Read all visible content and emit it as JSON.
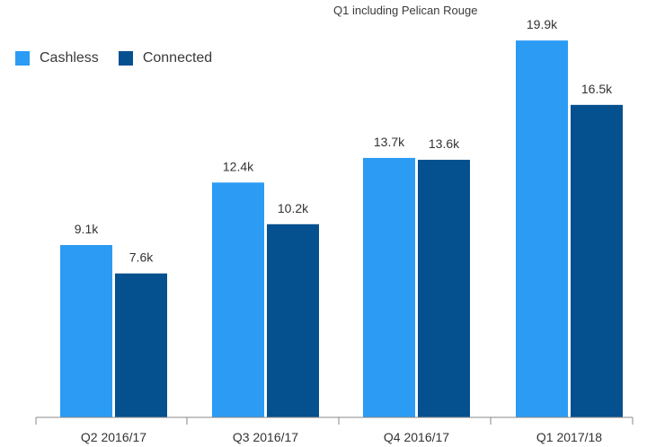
{
  "colors": {
    "cashless": "#2b9bf4",
    "connected": "#05508f",
    "axis": "#888888"
  },
  "chart_data": {
    "type": "bar",
    "categories": [
      "Q2 2016/17",
      "Q3 2016/17",
      "Q4 2016/17",
      "Q1 2017/18"
    ],
    "series": [
      {
        "name": "Cashless",
        "values": [
          9.1,
          12.4,
          13.7,
          19.9
        ],
        "labels": [
          "9.1k",
          "12.4k",
          "13.7k",
          "19.9k"
        ]
      },
      {
        "name": "Connected",
        "values": [
          7.6,
          10.2,
          13.6,
          16.5
        ],
        "labels": [
          "7.6k",
          "10.2k",
          "13.6k",
          "16.5k"
        ]
      }
    ],
    "annotation": "Q1 including Pelican Rouge",
    "legend_position": "top-left",
    "grid": false,
    "ylim": [
      0,
      20.0
    ]
  }
}
